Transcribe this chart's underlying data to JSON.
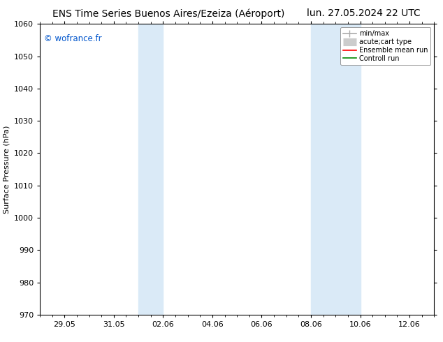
{
  "title_left": "ENS Time Series Buenos Aires/Ezeiza (Aéroport)",
  "title_right": "lun. 27.05.2024 22 UTC",
  "ylabel": "Surface Pressure (hPa)",
  "ylim": [
    970,
    1060
  ],
  "yticks": [
    970,
    980,
    990,
    1000,
    1010,
    1020,
    1030,
    1040,
    1050,
    1060
  ],
  "xtick_labels": [
    "29.05",
    "31.05",
    "02.06",
    "04.06",
    "06.06",
    "08.06",
    "10.06",
    "12.06"
  ],
  "x_start_date": "2024-05-28",
  "x_end_date": "2024-06-13",
  "shade_bands": [
    {
      "xstart": 4.0,
      "xend": 5.0
    },
    {
      "xstart": 11.0,
      "xend": 13.0
    }
  ],
  "shade_color": "#daeaf7",
  "background_color": "#ffffff",
  "watermark": "© wofrance.fr",
  "watermark_color": "#0055cc",
  "legend_items": [
    {
      "label": "min/max",
      "color": "#aaaaaa",
      "lw": 1.2
    },
    {
      "label": "acute;cart type",
      "color": "#cccccc",
      "lw": 6
    },
    {
      "label": "Ensemble mean run",
      "color": "#ff0000",
      "lw": 1.2
    },
    {
      "label": "Controll run",
      "color": "#008800",
      "lw": 1.2
    }
  ],
  "title_fontsize": 10,
  "ylabel_fontsize": 8,
  "tick_fontsize": 8,
  "legend_fontsize": 7,
  "num_days": 16,
  "xtick_day_offsets": [
    1,
    3,
    5,
    7,
    9,
    11,
    13,
    15
  ]
}
